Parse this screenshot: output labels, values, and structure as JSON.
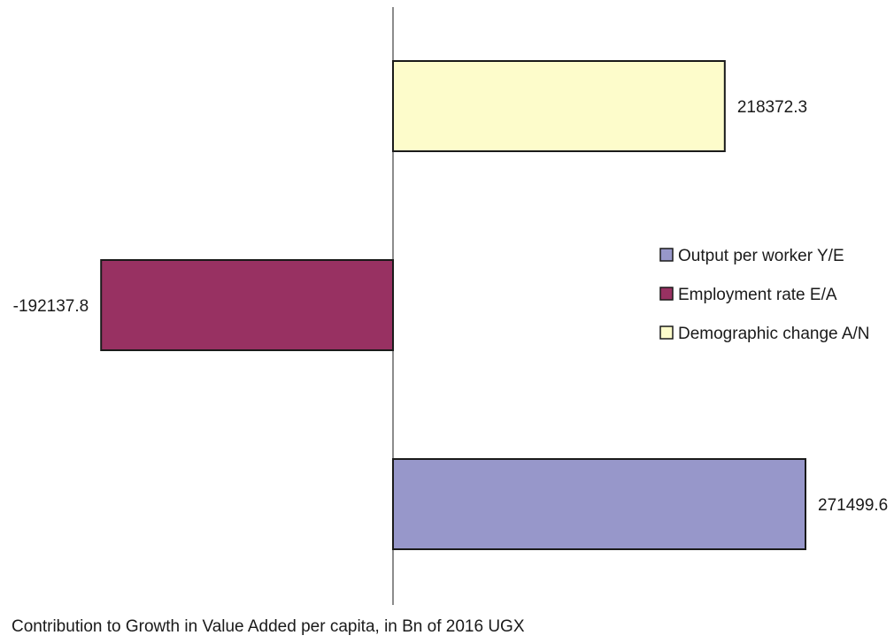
{
  "chart_data": {
    "type": "bar",
    "orientation": "horizontal",
    "categories": [
      "Output per worker Y/E",
      "Employment rate E/A",
      "Demographic change A/N"
    ],
    "values": [
      271499.6,
      -192137.8,
      218372.3
    ],
    "value_labels": [
      "271499.6",
      "-192137.8",
      "218372.3"
    ],
    "colors": [
      "#9797ca",
      "#983162",
      "#fdfccb"
    ],
    "xlim": [
      -260000,
      330000
    ],
    "grid": false,
    "legend": {
      "position": "right",
      "entries": [
        {
          "name": "Output per worker Y/E",
          "color": "#9797ca"
        },
        {
          "name": "Employment rate E/A",
          "color": "#983162"
        },
        {
          "name": "Demographic change A/N",
          "color": "#fdfccb"
        }
      ]
    },
    "title": "",
    "xlabel": "Contribution to Growth in Value Added per capita, in Bn of 2016 UGX",
    "ylabel": ""
  }
}
